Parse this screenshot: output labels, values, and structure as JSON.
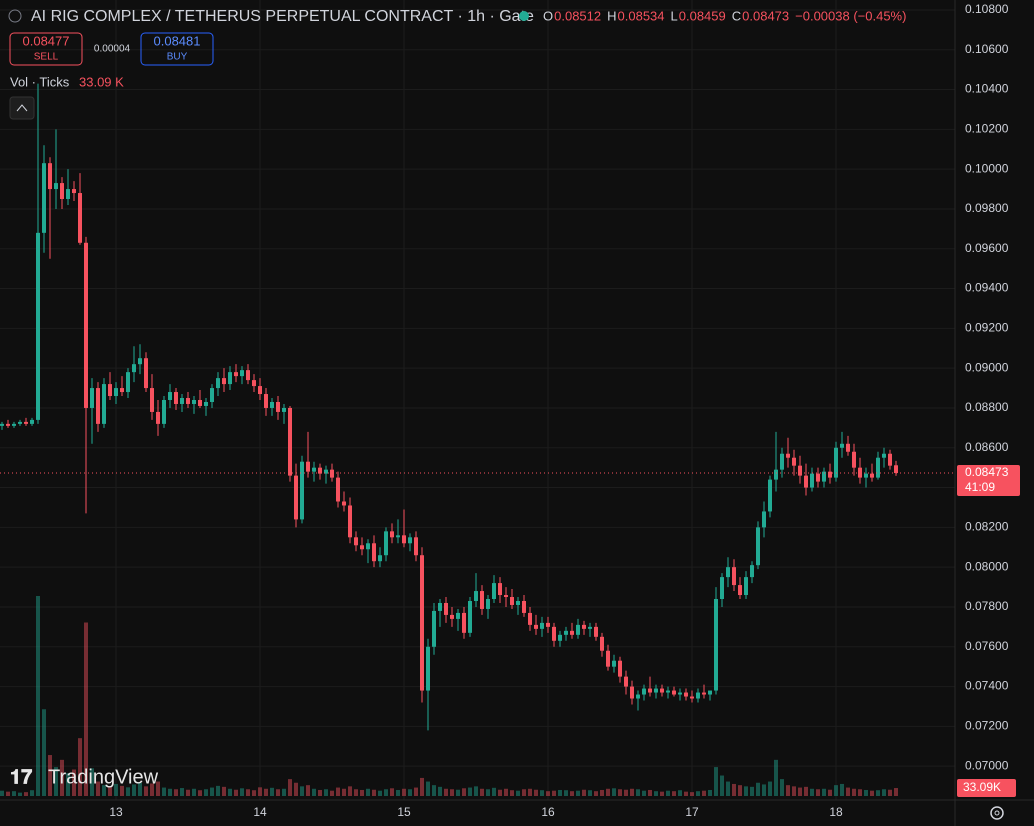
{
  "chart_data": {
    "type": "candlestick",
    "title": "AI RIG COMPLEX / TETHERUS PERPETUAL CONTRACT · 1h · Gate",
    "readout": {
      "o_label": "O",
      "open": 0.08512,
      "h_label": "H",
      "high": 0.08534,
      "l_label": "L",
      "low": 0.08459,
      "c_label": "C",
      "close": 0.08473,
      "change": "−0.00038 (−0.45%)"
    },
    "sell": {
      "price": 0.08477,
      "label": "SELL"
    },
    "spread": 4e-05,
    "buy": {
      "price": 0.08481,
      "label": "BUY"
    },
    "volume_title": "Vol · Ticks",
    "volume_label": "33.09 K",
    "volume_tag": "33.09K",
    "last_price": 0.08473,
    "countdown": "41:09",
    "watermark": "TradingView",
    "up_color": "#22ab94",
    "down_color": "#f7525f",
    "grid": true,
    "ylim": [
      0.0683,
      0.1085
    ],
    "yticks": [
      {
        "value": 0.108,
        "label": "0.10800"
      },
      {
        "value": 0.106,
        "label": "0.10600"
      },
      {
        "value": 0.104,
        "label": "0.10400"
      },
      {
        "value": 0.102,
        "label": "0.10200"
      },
      {
        "value": 0.1,
        "label": "0.10000"
      },
      {
        "value": 0.098,
        "label": "0.09800"
      },
      {
        "value": 0.096,
        "label": "0.09600"
      },
      {
        "value": 0.094,
        "label": "0.09400"
      },
      {
        "value": 0.092,
        "label": "0.09200"
      },
      {
        "value": 0.09,
        "label": "0.09000"
      },
      {
        "value": 0.088,
        "label": "0.08800"
      },
      {
        "value": 0.086,
        "label": "0.08600"
      },
      {
        "value": 0.084,
        "label": "0.08400"
      },
      {
        "value": 0.082,
        "label": "0.08200"
      },
      {
        "value": 0.08,
        "label": "0.08000"
      },
      {
        "value": 0.078,
        "label": "0.07800"
      },
      {
        "value": 0.076,
        "label": "0.07600"
      },
      {
        "value": 0.074,
        "label": "0.07400"
      },
      {
        "value": 0.072,
        "label": "0.07200"
      },
      {
        "value": 0.07,
        "label": "0.07000"
      }
    ],
    "xticks": [
      {
        "value": 19,
        "label": "13"
      },
      {
        "value": 43,
        "label": "14"
      },
      {
        "value": 67,
        "label": "15"
      },
      {
        "value": 91,
        "label": "16"
      },
      {
        "value": 115,
        "label": "17"
      },
      {
        "value": 139,
        "label": "18"
      }
    ],
    "ohlc": [
      [
        0.0871,
        0.0873,
        0.0869,
        0.0872
      ],
      [
        0.0872,
        0.0874,
        0.087,
        0.0871
      ],
      [
        0.0871,
        0.0873,
        0.087,
        0.0872
      ],
      [
        0.0872,
        0.0874,
        0.0871,
        0.0873
      ],
      [
        0.0873,
        0.0875,
        0.0871,
        0.0872
      ],
      [
        0.0872,
        0.0875,
        0.0871,
        0.0874
      ],
      [
        0.0874,
        0.1043,
        0.0872,
        0.0968
      ],
      [
        0.0968,
        0.1012,
        0.0958,
        0.1003
      ],
      [
        0.1003,
        0.1006,
        0.0955,
        0.099
      ],
      [
        0.099,
        0.102,
        0.098,
        0.0993
      ],
      [
        0.0993,
        0.0996,
        0.098,
        0.0985
      ],
      [
        0.0985,
        0.1,
        0.0982,
        0.099
      ],
      [
        0.099,
        0.0994,
        0.0984,
        0.0988
      ],
      [
        0.0988,
        0.0998,
        0.0962,
        0.0963
      ],
      [
        0.0963,
        0.0966,
        0.0827,
        0.088
      ],
      [
        0.088,
        0.0895,
        0.0862,
        0.089
      ],
      [
        0.089,
        0.0893,
        0.0868,
        0.0872
      ],
      [
        0.0872,
        0.0895,
        0.087,
        0.0892
      ],
      [
        0.0892,
        0.0898,
        0.0884,
        0.0886
      ],
      [
        0.0886,
        0.0893,
        0.0882,
        0.089
      ],
      [
        0.089,
        0.0896,
        0.0886,
        0.0888
      ],
      [
        0.0888,
        0.09,
        0.0885,
        0.0898
      ],
      [
        0.0898,
        0.0911,
        0.0893,
        0.0902
      ],
      [
        0.0902,
        0.0912,
        0.0897,
        0.0905
      ],
      [
        0.0905,
        0.0908,
        0.0888,
        0.089
      ],
      [
        0.089,
        0.0897,
        0.0874,
        0.0878
      ],
      [
        0.0878,
        0.0884,
        0.0866,
        0.0872
      ],
      [
        0.0872,
        0.0886,
        0.087,
        0.0884
      ],
      [
        0.0884,
        0.0892,
        0.088,
        0.0888
      ],
      [
        0.0888,
        0.089,
        0.0879,
        0.0882
      ],
      [
        0.0882,
        0.0887,
        0.0878,
        0.0885
      ],
      [
        0.0885,
        0.0888,
        0.088,
        0.0882
      ],
      [
        0.0882,
        0.0886,
        0.0877,
        0.0884
      ],
      [
        0.0884,
        0.0889,
        0.088,
        0.0881
      ],
      [
        0.0881,
        0.0885,
        0.0876,
        0.0883
      ],
      [
        0.0883,
        0.0892,
        0.088,
        0.089
      ],
      [
        0.089,
        0.0898,
        0.0886,
        0.0895
      ],
      [
        0.0895,
        0.09,
        0.0888,
        0.0892
      ],
      [
        0.0892,
        0.0901,
        0.0889,
        0.0898
      ],
      [
        0.0898,
        0.0902,
        0.0893,
        0.0896
      ],
      [
        0.0896,
        0.0901,
        0.0892,
        0.0899
      ],
      [
        0.0899,
        0.0902,
        0.0892,
        0.0894
      ],
      [
        0.0894,
        0.0897,
        0.0888,
        0.0891
      ],
      [
        0.0891,
        0.0895,
        0.0884,
        0.0887
      ],
      [
        0.0887,
        0.089,
        0.0876,
        0.088
      ],
      [
        0.088,
        0.0885,
        0.0876,
        0.0883
      ],
      [
        0.0883,
        0.0886,
        0.0874,
        0.0878
      ],
      [
        0.0878,
        0.0882,
        0.0872,
        0.088
      ],
      [
        0.088,
        0.0881,
        0.0843,
        0.0846
      ],
      [
        0.0846,
        0.0852,
        0.082,
        0.0824
      ],
      [
        0.0824,
        0.0856,
        0.0822,
        0.0853
      ],
      [
        0.0853,
        0.0868,
        0.0845,
        0.0848
      ],
      [
        0.0848,
        0.0853,
        0.0843,
        0.085
      ],
      [
        0.085,
        0.0852,
        0.0844,
        0.0847
      ],
      [
        0.0847,
        0.0851,
        0.0842,
        0.0849
      ],
      [
        0.0849,
        0.0852,
        0.0843,
        0.0845
      ],
      [
        0.0845,
        0.0848,
        0.083,
        0.0833
      ],
      [
        0.0833,
        0.0838,
        0.0828,
        0.0831
      ],
      [
        0.0831,
        0.0835,
        0.0812,
        0.0815
      ],
      [
        0.0815,
        0.0818,
        0.0808,
        0.0811
      ],
      [
        0.0811,
        0.0815,
        0.0806,
        0.0809
      ],
      [
        0.0809,
        0.0814,
        0.0802,
        0.0812
      ],
      [
        0.0812,
        0.0816,
        0.08,
        0.0803
      ],
      [
        0.0803,
        0.081,
        0.08,
        0.0806
      ],
      [
        0.0806,
        0.082,
        0.0803,
        0.0818
      ],
      [
        0.0818,
        0.0822,
        0.0812,
        0.0815
      ],
      [
        0.0815,
        0.0824,
        0.0812,
        0.0816
      ],
      [
        0.0816,
        0.0829,
        0.081,
        0.0812
      ],
      [
        0.0812,
        0.0817,
        0.0808,
        0.0815
      ],
      [
        0.0815,
        0.0818,
        0.0803,
        0.0806
      ],
      [
        0.0806,
        0.081,
        0.0732,
        0.0738
      ],
      [
        0.0738,
        0.0764,
        0.0718,
        0.076
      ],
      [
        0.076,
        0.0782,
        0.0756,
        0.0778
      ],
      [
        0.0778,
        0.0784,
        0.077,
        0.0782
      ],
      [
        0.0782,
        0.0785,
        0.0772,
        0.0776
      ],
      [
        0.0776,
        0.078,
        0.077,
        0.0774
      ],
      [
        0.0774,
        0.0779,
        0.0768,
        0.0777
      ],
      [
        0.0777,
        0.078,
        0.0764,
        0.0767
      ],
      [
        0.0767,
        0.0785,
        0.0765,
        0.0783
      ],
      [
        0.0783,
        0.0797,
        0.078,
        0.0788
      ],
      [
        0.0788,
        0.0791,
        0.0776,
        0.0779
      ],
      [
        0.0779,
        0.0786,
        0.0774,
        0.0784
      ],
      [
        0.0784,
        0.0796,
        0.0782,
        0.0792
      ],
      [
        0.0792,
        0.0795,
        0.0782,
        0.0786
      ],
      [
        0.0786,
        0.079,
        0.078,
        0.0785
      ],
      [
        0.0785,
        0.0789,
        0.0779,
        0.0781
      ],
      [
        0.0781,
        0.0785,
        0.0776,
        0.0783
      ],
      [
        0.0783,
        0.0786,
        0.0775,
        0.0777
      ],
      [
        0.0777,
        0.078,
        0.0768,
        0.0771
      ],
      [
        0.0771,
        0.0776,
        0.0766,
        0.0769
      ],
      [
        0.0769,
        0.0775,
        0.0765,
        0.0772
      ],
      [
        0.0772,
        0.0775,
        0.0767,
        0.077
      ],
      [
        0.077,
        0.0772,
        0.076,
        0.0763
      ],
      [
        0.0763,
        0.0768,
        0.076,
        0.0766
      ],
      [
        0.0766,
        0.077,
        0.0763,
        0.0768
      ],
      [
        0.0768,
        0.0772,
        0.0764,
        0.0766
      ],
      [
        0.0766,
        0.0774,
        0.0764,
        0.0771
      ],
      [
        0.0771,
        0.0773,
        0.0766,
        0.0769
      ],
      [
        0.0769,
        0.0772,
        0.0765,
        0.077
      ],
      [
        0.077,
        0.0772,
        0.0763,
        0.0765
      ],
      [
        0.0765,
        0.0767,
        0.0755,
        0.0758
      ],
      [
        0.0758,
        0.0761,
        0.0748,
        0.075
      ],
      [
        0.075,
        0.0756,
        0.0747,
        0.0753
      ],
      [
        0.0753,
        0.0755,
        0.0742,
        0.0745
      ],
      [
        0.0745,
        0.0748,
        0.0736,
        0.074
      ],
      [
        0.074,
        0.0743,
        0.0731,
        0.0734
      ],
      [
        0.0734,
        0.0738,
        0.0728,
        0.0736
      ],
      [
        0.0736,
        0.0741,
        0.0733,
        0.0739
      ],
      [
        0.0739,
        0.0745,
        0.0735,
        0.0737
      ],
      [
        0.0737,
        0.0741,
        0.0734,
        0.0739
      ],
      [
        0.0739,
        0.0741,
        0.0735,
        0.0737
      ],
      [
        0.0737,
        0.074,
        0.0734,
        0.0738
      ],
      [
        0.0738,
        0.074,
        0.0735,
        0.0736
      ],
      [
        0.0736,
        0.0739,
        0.0733,
        0.0737
      ],
      [
        0.0737,
        0.0739,
        0.0733,
        0.0735
      ],
      [
        0.0735,
        0.0738,
        0.0732,
        0.0734
      ],
      [
        0.0734,
        0.0739,
        0.0732,
        0.0737
      ],
      [
        0.0737,
        0.0741,
        0.0734,
        0.0736
      ],
      [
        0.0736,
        0.0738,
        0.0733,
        0.0738
      ],
      [
        0.0738,
        0.079,
        0.0736,
        0.0784
      ],
      [
        0.0784,
        0.0797,
        0.078,
        0.0795
      ],
      [
        0.0795,
        0.0805,
        0.079,
        0.08
      ],
      [
        0.08,
        0.0804,
        0.0788,
        0.0791
      ],
      [
        0.0791,
        0.0795,
        0.0784,
        0.0786
      ],
      [
        0.0786,
        0.0798,
        0.0784,
        0.0795
      ],
      [
        0.0795,
        0.0803,
        0.0792,
        0.0801
      ],
      [
        0.0801,
        0.0823,
        0.0799,
        0.082
      ],
      [
        0.082,
        0.0833,
        0.0815,
        0.0828
      ],
      [
        0.0828,
        0.0846,
        0.0825,
        0.0844
      ],
      [
        0.0844,
        0.0868,
        0.0838,
        0.0849
      ],
      [
        0.0849,
        0.086,
        0.0845,
        0.0857
      ],
      [
        0.0857,
        0.0865,
        0.085,
        0.0855
      ],
      [
        0.0855,
        0.0859,
        0.0846,
        0.0851
      ],
      [
        0.0851,
        0.0856,
        0.0842,
        0.0846
      ],
      [
        0.0846,
        0.0852,
        0.0836,
        0.084
      ],
      [
        0.084,
        0.085,
        0.0838,
        0.0847
      ],
      [
        0.0847,
        0.085,
        0.084,
        0.0843
      ],
      [
        0.0843,
        0.085,
        0.084,
        0.0848
      ],
      [
        0.0848,
        0.0852,
        0.0842,
        0.0845
      ],
      [
        0.0845,
        0.0863,
        0.0843,
        0.086
      ],
      [
        0.086,
        0.0868,
        0.0855,
        0.0862
      ],
      [
        0.0862,
        0.0866,
        0.0856,
        0.0858
      ],
      [
        0.0858,
        0.0862,
        0.0846,
        0.085
      ],
      [
        0.085,
        0.0855,
        0.0842,
        0.0845
      ],
      [
        0.0845,
        0.085,
        0.084,
        0.0847
      ],
      [
        0.0847,
        0.0852,
        0.0843,
        0.0845
      ],
      [
        0.0845,
        0.0858,
        0.0844,
        0.0855
      ],
      [
        0.0855,
        0.086,
        0.085,
        0.0857
      ],
      [
        0.0857,
        0.0859,
        0.0849,
        0.0851
      ],
      [
        0.08512,
        0.08534,
        0.08459,
        0.08473
      ]
    ],
    "volume": [
      22,
      18,
      20,
      14,
      16,
      24,
      830,
      360,
      170,
      120,
      150,
      95,
      110,
      240,
      720,
      115,
      60,
      45,
      38,
      50,
      42,
      36,
      48,
      55,
      40,
      52,
      60,
      35,
      30,
      28,
      33,
      26,
      30,
      24,
      28,
      35,
      42,
      38,
      30,
      26,
      32,
      28,
      24,
      36,
      30,
      34,
      28,
      30,
      70,
      55,
      40,
      45,
      30,
      25,
      28,
      22,
      35,
      30,
      40,
      28,
      25,
      30,
      26,
      22,
      28,
      32,
      25,
      30,
      28,
      35,
      75,
      60,
      45,
      38,
      30,
      28,
      26,
      32,
      35,
      40,
      30,
      28,
      34,
      26,
      30,
      24,
      22,
      28,
      30,
      26,
      24,
      20,
      22,
      25,
      24,
      20,
      22,
      26,
      24,
      20,
      25,
      30,
      32,
      28,
      26,
      30,
      28,
      22,
      25,
      20,
      18,
      22,
      20,
      24,
      18,
      16,
      20,
      22,
      25,
      120,
      85,
      60,
      50,
      45,
      40,
      38,
      55,
      48,
      60,
      150,
      70,
      45,
      40,
      35,
      38,
      30,
      28,
      30,
      26,
      45,
      50,
      35,
      30,
      28,
      25,
      22,
      24,
      28,
      26,
      33.09
    ]
  }
}
